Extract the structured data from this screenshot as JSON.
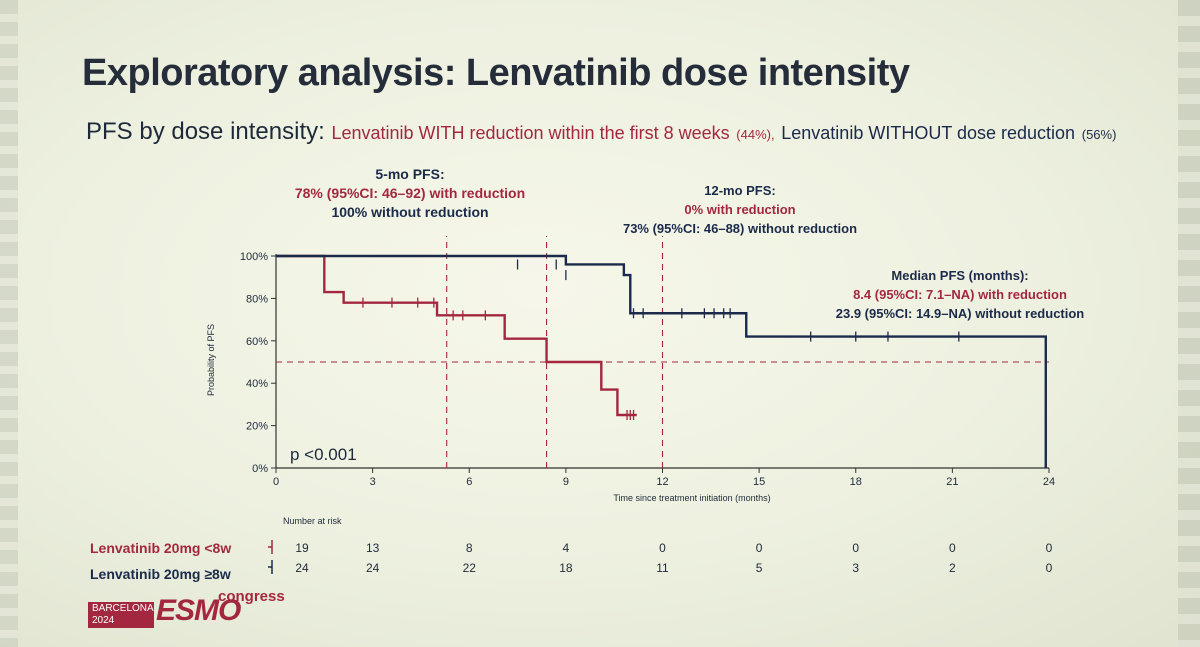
{
  "slide": {
    "title": "Exploratory analysis: Lenvatinib dose intensity",
    "subtitle_lead": "PFS by dose intensity:",
    "subtitle_group1": "Lenvatinib WITH reduction within the first 8 weeks",
    "subtitle_group1_pct": "(44%),",
    "subtitle_group2": "Lenvatinib WITHOUT dose reduction",
    "subtitle_group2_pct": "(56%)"
  },
  "annotations": {
    "five_mo_title": "5-mo PFS:",
    "five_mo_reduction": "78% (95%CI: 46–92) with reduction",
    "five_mo_without": "100% without reduction",
    "twelve_mo_title": "12-mo PFS:",
    "twelve_mo_reduction": "0% with reduction",
    "twelve_mo_without": "73% (95%CI: 46–88) without reduction",
    "median_title": "Median PFS (months):",
    "median_reduction": "8.4 (95%CI: 7.1–NA) with reduction",
    "median_without": "23.9 (95%CI: 14.9–NA) without reduction",
    "p_value": "p <0.001"
  },
  "risk_table": {
    "header": "Number at risk",
    "rows": [
      {
        "label": "Lenvatinib 20mg <8w",
        "values": [
          "19",
          "13",
          "8",
          "4",
          "0",
          "0",
          "0",
          "0",
          "0"
        ]
      },
      {
        "label": "Lenvatinib 20mg ≥8w",
        "values": [
          "24",
          "24",
          "22",
          "18",
          "11",
          "5",
          "3",
          "2",
          "0"
        ]
      }
    ]
  },
  "logo": {
    "city": "BARCELONA",
    "year": "2024",
    "brand": "ESMO",
    "congress": "congress"
  },
  "colors": {
    "reduction": "#a3283f",
    "without": "#1b2a4a"
  },
  "chart_data": {
    "type": "line",
    "title": "",
    "xlabel": "Time since treatment initiation (months)",
    "ylabel": "Probability of PFS",
    "xlim": [
      0,
      24
    ],
    "ylim": [
      0,
      100
    ],
    "x_ticks": [
      0,
      3,
      6,
      9,
      12,
      15,
      18,
      21,
      24
    ],
    "y_ticks": [
      0,
      20,
      40,
      60,
      80,
      100
    ],
    "y_tick_labels": [
      "0%",
      "20%",
      "40%",
      "60%",
      "80%",
      "100%"
    ],
    "grid": false,
    "series": [
      {
        "name": "Lenvatinib 20mg <8w",
        "color": "#a3283f",
        "step_x": [
          0,
          1.4,
          1.5,
          2.1,
          5.0,
          7.1,
          8.4,
          10.1,
          10.6,
          11.2
        ],
        "step_y": [
          100,
          100,
          83,
          78,
          72,
          61,
          50,
          37,
          25,
          25
        ],
        "censor_x": [
          2.7,
          3.6,
          4.4,
          4.9,
          5.5,
          5.8,
          6.5,
          10.9,
          11.0,
          11.1
        ],
        "censor_y": [
          78,
          78,
          78,
          78,
          72,
          72,
          72,
          25,
          25,
          25
        ]
      },
      {
        "name": "Lenvatinib 20mg ≥8w",
        "color": "#1b2a4a",
        "step_x": [
          0,
          7.0,
          9.0,
          10.8,
          11.0,
          14.6,
          23.9
        ],
        "step_y": [
          100,
          100,
          96,
          91,
          73,
          62,
          0
        ],
        "censor_x": [
          7.5,
          8.7,
          9.0,
          11.1,
          11.4,
          12.6,
          13.3,
          13.6,
          13.9,
          14.1,
          16.6,
          18.0,
          19.0,
          21.2
        ],
        "censor_y": [
          96,
          96,
          91,
          73,
          73,
          73,
          73,
          73,
          73,
          73,
          62,
          62,
          62,
          62
        ]
      }
    ],
    "reference_lines": {
      "median_y": 50,
      "vertical_x": [
        5.3,
        8.4,
        12
      ]
    }
  }
}
